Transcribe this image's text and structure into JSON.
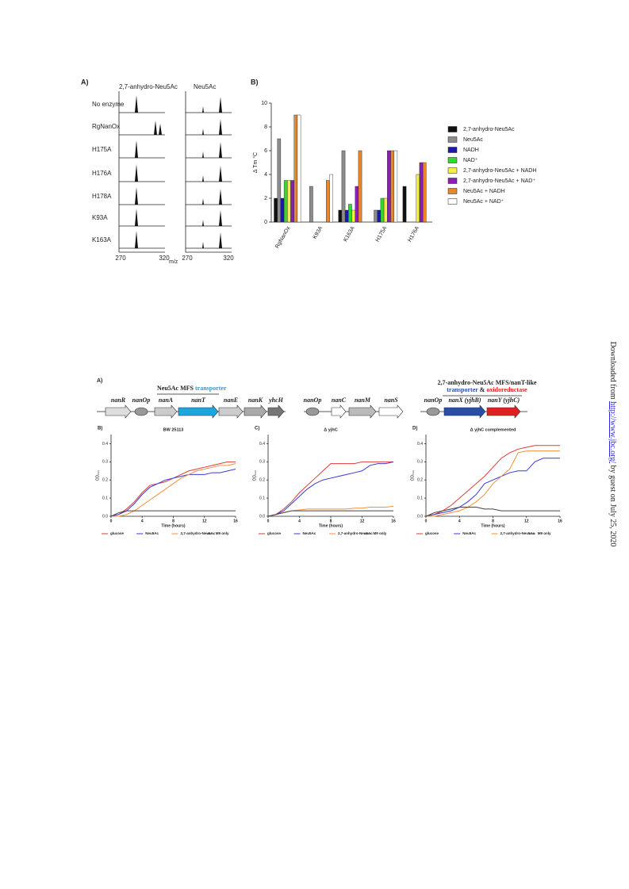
{
  "sidebar": {
    "prefix": "Downloaded from ",
    "link": "http://www.jbc.org/",
    "suffix": " by guest on July 25, 2020"
  },
  "figure1_a": {
    "panel": "A)",
    "col_headers": [
      "2,7-anhydro-Neu5Ac",
      "Neu5Ac"
    ],
    "rows": [
      "No enzyme",
      "RgNanOx",
      "H175A",
      "H176A",
      "H178A",
      "K93A",
      "K163A"
    ],
    "x_labels": [
      "270",
      "320",
      "270",
      "320"
    ],
    "x_unit": "m/z"
  },
  "figure2_a": {
    "panel": "A)",
    "op1_title": "Neu5Ac MFS",
    "op1_title_color": "transporter",
    "op1_genes": [
      "nanR",
      "nanOp",
      "nanA",
      "nanT",
      "nanE",
      "nanK",
      "yhcH"
    ],
    "op2_genes": [
      "nanOp",
      "nanC",
      "nanM",
      "nanS"
    ],
    "op3_title": "2,7-anhydro-Neu5Ac MFS/nanT-like",
    "op3_sub1": "transporter",
    "op3_sub2": " & ",
    "op3_sub3": "oxidoreductase",
    "op3_genes": [
      "nanOp",
      "nanX (yjhB)",
      "nanY (yjhC)"
    ]
  },
  "chart_data": [
    {
      "type": "bar",
      "panel": "B)",
      "ylabel": "Δ Tm °C",
      "categories": [
        "RgNanOx",
        "K93A",
        "K163A",
        "H175A",
        "H176A"
      ],
      "ylim": [
        0,
        10
      ],
      "yticks": [
        0,
        2,
        4,
        6,
        8,
        10
      ],
      "series": [
        {
          "name": "2,7-anhydro-Neu5Ac",
          "color": "#111111",
          "values": [
            2,
            null,
            1,
            null,
            3
          ]
        },
        {
          "name": "Neu5Ac",
          "color": "#8c8c8c",
          "values": [
            7,
            3,
            6,
            1,
            null
          ]
        },
        {
          "name": "NADH",
          "color": "#1a1aa8",
          "values": [
            2,
            null,
            1,
            1,
            null
          ]
        },
        {
          "name": "NAD⁺",
          "color": "#33d633",
          "values": [
            3.5,
            null,
            1.5,
            2,
            null
          ]
        },
        {
          "name": "2,7-anhydro-Neu5Ac + NADH",
          "color": "#f2f23a",
          "values": [
            3.5,
            null,
            1,
            2,
            4
          ]
        },
        {
          "name": "2,7-anhydro-Neu5Ac + NAD⁺",
          "color": "#8a1fb8",
          "values": [
            3.5,
            null,
            3,
            6,
            5
          ]
        },
        {
          "name": "Neu5Ac + NADH",
          "color": "#e8862a",
          "values": [
            9,
            3.5,
            6,
            6,
            5
          ]
        },
        {
          "name": "Neu5Ac + NAD⁺",
          "color": "#ffffff",
          "values": [
            9,
            4,
            null,
            6,
            null
          ]
        }
      ]
    },
    {
      "type": "line",
      "panel": "B)",
      "title": "BW 25113",
      "xlabel": "Time (hours)",
      "ylabel": "OD₆₀₀",
      "x": [
        0,
        1,
        2,
        3,
        4,
        5,
        6,
        7,
        8,
        9,
        10,
        11,
        12,
        13,
        14,
        15,
        16
      ],
      "xlim": [
        0,
        16
      ],
      "xticks": [
        0,
        4,
        8,
        12,
        16
      ],
      "ylim": [
        0,
        0.45
      ],
      "yticks": [
        {
          "value": 0,
          "label": "0.0"
        },
        0.1,
        0.2,
        0.3,
        0.4
      ],
      "series": [
        {
          "name": "glucose",
          "color": "#e03a3a",
          "values": [
            0,
            0.01,
            0.04,
            0.08,
            0.13,
            0.17,
            0.18,
            0.19,
            0.21,
            0.23,
            0.25,
            0.26,
            0.27,
            0.28,
            0.29,
            0.3,
            0.3
          ]
        },
        {
          "name": "Neu5Ac",
          "color": "#3a3ad0",
          "values": [
            0,
            0.01,
            0.03,
            0.07,
            0.12,
            0.16,
            0.18,
            0.2,
            0.21,
            0.22,
            0.23,
            0.23,
            0.23,
            0.24,
            0.24,
            0.25,
            0.26
          ]
        },
        {
          "name": "2,7-anhydro-Neu5Ac",
          "color": "#f0903a",
          "values": [
            0,
            0,
            0.01,
            0.03,
            0.06,
            0.09,
            0.12,
            0.15,
            0.18,
            0.21,
            0.23,
            0.25,
            0.26,
            0.27,
            0.28,
            0.28,
            0.29
          ]
        },
        {
          "name": "M9 only",
          "color": "#444444",
          "values": [
            0,
            0.02,
            0.03,
            0.03,
            0.03,
            0.03,
            0.03,
            0.03,
            0.03,
            0.03,
            0.03,
            0.03,
            0.03,
            0.03,
            0.03,
            0.03,
            0.03
          ]
        }
      ]
    },
    {
      "type": "line",
      "panel": "C)",
      "title": "Δ yjhC",
      "xlabel": "Time (hours)",
      "ylabel": "OD₆₀₀",
      "x": [
        0,
        1,
        2,
        3,
        4,
        5,
        6,
        7,
        8,
        9,
        10,
        11,
        12,
        13,
        14,
        15,
        16
      ],
      "xlim": [
        0,
        16
      ],
      "xticks": [
        0,
        4,
        8,
        12,
        16
      ],
      "ylim": [
        0,
        0.45
      ],
      "yticks": [
        {
          "value": 0,
          "label": "0.0"
        },
        0.1,
        0.2,
        0.3,
        0.4
      ],
      "series": [
        {
          "name": "glucose",
          "color": "#e03a3a",
          "values": [
            0,
            0.01,
            0.04,
            0.08,
            0.13,
            0.17,
            0.21,
            0.25,
            0.29,
            0.29,
            0.29,
            0.29,
            0.3,
            0.3,
            0.3,
            0.3,
            0.3
          ]
        },
        {
          "name": "Neu5Ac",
          "color": "#3a3ad0",
          "values": [
            0,
            0.01,
            0.03,
            0.07,
            0.11,
            0.15,
            0.18,
            0.2,
            0.21,
            0.22,
            0.23,
            0.24,
            0.25,
            0.28,
            0.29,
            0.29,
            0.3
          ]
        },
        {
          "name": "2,7-anhydro-Neu5Ac",
          "color": "#f0903a",
          "values": [
            0,
            0.01,
            0.02,
            0.03,
            0.035,
            0.04,
            0.04,
            0.04,
            0.04,
            0.04,
            0.04,
            0.045,
            0.045,
            0.05,
            0.05,
            0.05,
            0.055
          ]
        },
        {
          "name": "M9 only",
          "color": "#444444",
          "values": [
            0,
            0.01,
            0.02,
            0.03,
            0.03,
            0.03,
            0.03,
            0.03,
            0.03,
            0.03,
            0.03,
            0.03,
            0.03,
            0.03,
            0.03,
            0.03,
            0.03
          ]
        }
      ]
    },
    {
      "type": "line",
      "panel": "D)",
      "title": "Δ yjhC complemented",
      "xlabel": "Time (hours)",
      "ylabel": "OD₆₀₀",
      "x": [
        0,
        1,
        2,
        3,
        4,
        5,
        6,
        7,
        8,
        9,
        10,
        11,
        12,
        13,
        14,
        15,
        16
      ],
      "xlim": [
        0,
        16
      ],
      "xticks": [
        0,
        4,
        8,
        12,
        16
      ],
      "ylim": [
        0,
        0.45
      ],
      "yticks": [
        {
          "value": 0,
          "label": "0.0"
        },
        0.1,
        0.2,
        0.3,
        0.4
      ],
      "series": [
        {
          "name": "glucose",
          "color": "#e03a3a",
          "values": [
            0,
            0.01,
            0.03,
            0.06,
            0.1,
            0.14,
            0.18,
            0.22,
            0.27,
            0.32,
            0.35,
            0.37,
            0.38,
            0.39,
            0.39,
            0.39,
            0.39
          ]
        },
        {
          "name": "Neu5Ac",
          "color": "#3a3ad0",
          "values": [
            0,
            0.01,
            0.02,
            0.03,
            0.05,
            0.08,
            0.12,
            0.18,
            0.2,
            0.22,
            0.24,
            0.25,
            0.25,
            0.3,
            0.32,
            0.32,
            0.32
          ]
        },
        {
          "name": "2,7-anhydro-Neu5Ac",
          "color": "#f0903a",
          "values": [
            0,
            0,
            0.01,
            0.02,
            0.03,
            0.05,
            0.08,
            0.12,
            0.18,
            0.22,
            0.26,
            0.35,
            0.36,
            0.36,
            0.36,
            0.36,
            0.36
          ]
        },
        {
          "name": "M9 only",
          "color": "#444444",
          "values": [
            0,
            0.02,
            0.03,
            0.04,
            0.05,
            0.05,
            0.05,
            0.04,
            0.04,
            0.03,
            0.03,
            0.03,
            0.03,
            0.03,
            0.03,
            0.03,
            0.03
          ]
        }
      ]
    }
  ]
}
